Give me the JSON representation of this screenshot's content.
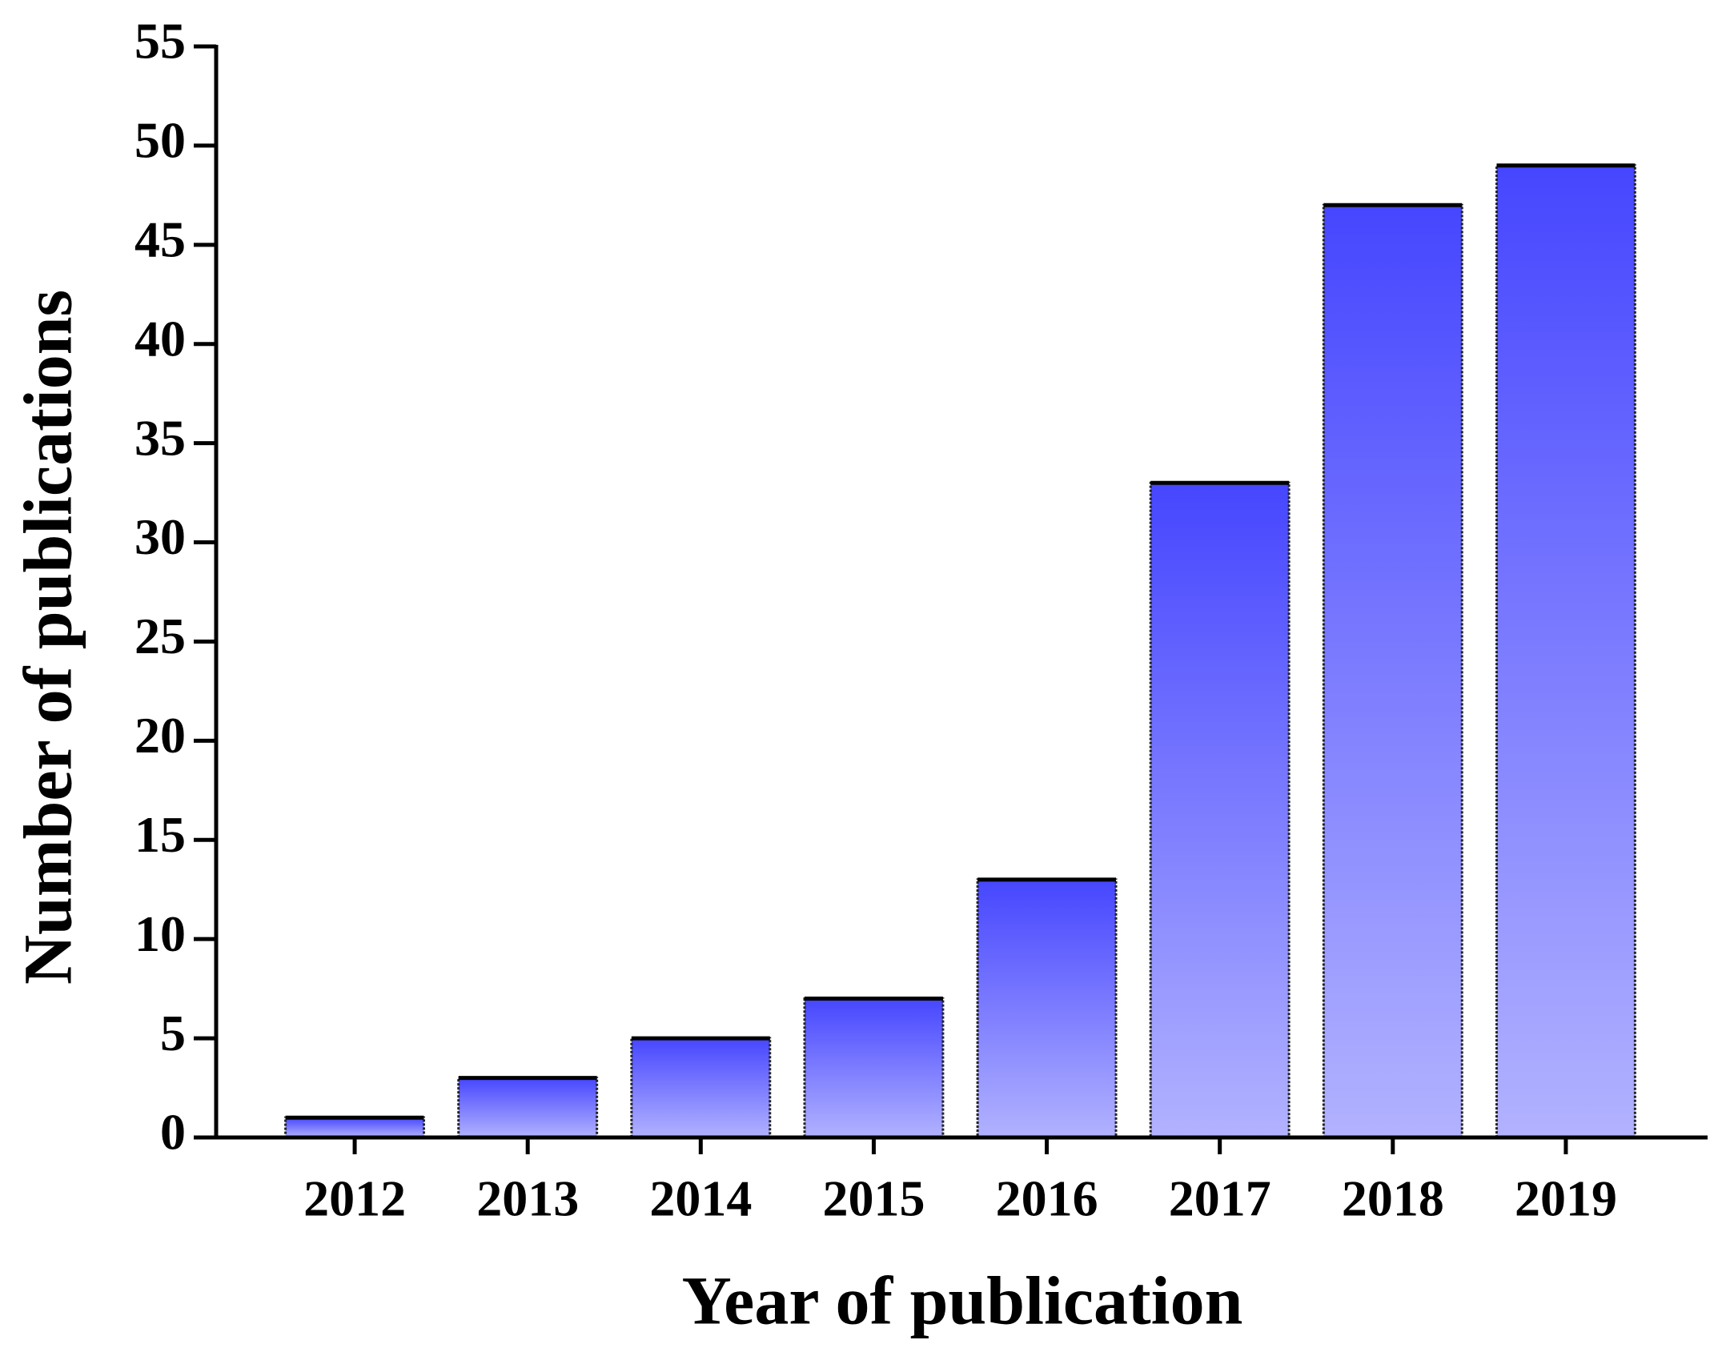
{
  "chart_data": {
    "type": "bar",
    "x_label": "Year of publication",
    "y_label": "Number of publications",
    "categories": [
      "2012",
      "2013",
      "2014",
      "2015",
      "2016",
      "2017",
      "2018",
      "2019"
    ],
    "values": [
      1,
      3,
      5,
      7,
      13,
      33,
      47,
      49
    ],
    "gradient": [
      "#4646ff",
      "#b2b2ff"
    ],
    "ylim": [
      0,
      55
    ],
    "yticks": [
      0,
      5,
      10,
      15,
      20,
      25,
      30,
      35,
      40,
      45,
      50,
      55
    ],
    "grid": false
  }
}
